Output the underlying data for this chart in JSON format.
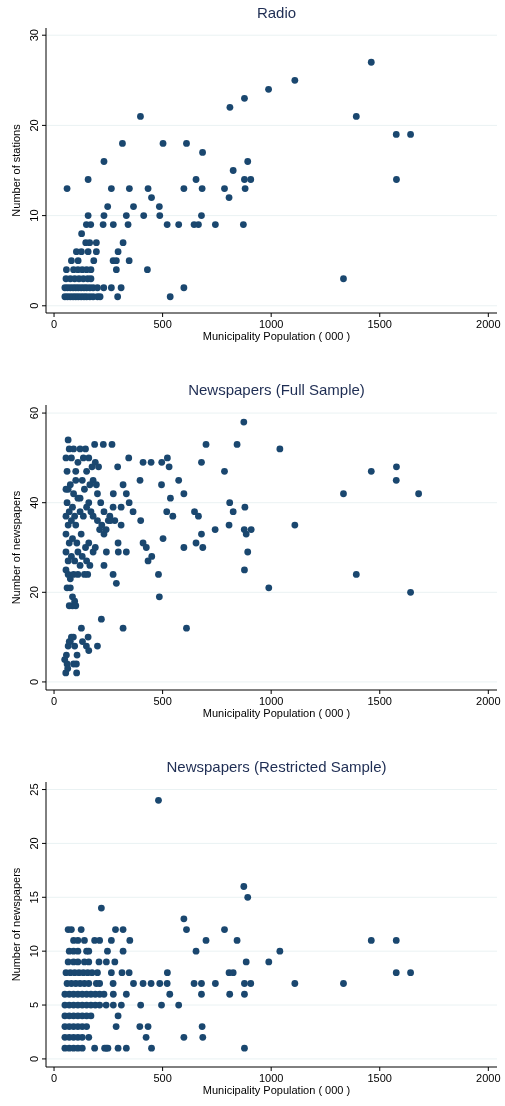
{
  "chart_data": [
    {
      "type": "scatter",
      "title": "Radio",
      "xlabel": "Municipality Population ( 000 )",
      "ylabel": "Number of stations",
      "color": "#1a476f",
      "marker": "circle",
      "grid": "y",
      "xlim": [
        -37,
        2040
      ],
      "ylim": [
        -0.8,
        30.8
      ],
      "xticks": [
        0,
        500,
        1000,
        1500,
        2000
      ],
      "yticks": [
        0,
        10,
        20,
        30
      ],
      "x": [
        60,
        157,
        230,
        315,
        398,
        502,
        610,
        684,
        810,
        877,
        988,
        1109,
        1461,
        1392,
        1576,
        1642,
        1577,
        1333,
        264,
        347,
        433,
        449,
        598,
        654,
        682,
        785,
        806,
        825,
        877,
        880,
        892,
        906,
        247,
        366,
        485,
        157,
        230,
        333,
        413,
        487,
        679,
        149,
        169,
        226,
        273,
        341,
        521,
        574,
        645,
        665,
        743,
        872,
        127,
        146,
        164,
        195,
        318,
        103,
        126,
        157,
        195,
        295,
        80,
        111,
        183,
        272,
        287,
        346,
        57,
        90,
        110,
        130,
        150,
        170,
        287,
        430,
        55,
        75,
        95,
        115,
        135,
        155,
        170,
        50,
        62,
        75,
        88,
        100,
        112,
        125,
        138,
        150,
        165,
        180,
        200,
        229,
        264,
        309,
        598,
        50,
        62,
        75,
        88,
        100,
        112,
        125,
        138,
        150,
        165,
        180,
        200,
        212,
        293,
        535
      ],
      "values": [
        13,
        14,
        16,
        18,
        21,
        18,
        18,
        17,
        22,
        23,
        24,
        25,
        27,
        21,
        19,
        19,
        14,
        3,
        13,
        13,
        13,
        12,
        13,
        14,
        13,
        13,
        12,
        15,
        14,
        13,
        16,
        14,
        11,
        11,
        11,
        10,
        10,
        10,
        10,
        10,
        10,
        9,
        9,
        9,
        9,
        9,
        9,
        9,
        9,
        9,
        9,
        9,
        8,
        7,
        7,
        7,
        7,
        6,
        6,
        6,
        6,
        6,
        5,
        5,
        5,
        5,
        5,
        5,
        4,
        4,
        4,
        4,
        4,
        4,
        4,
        4,
        3,
        3,
        3,
        3,
        3,
        3,
        3,
        2,
        2,
        2,
        2,
        2,
        2,
        2,
        2,
        2,
        2,
        2,
        2,
        2,
        2,
        2,
        2,
        1,
        1,
        1,
        1,
        1,
        1,
        1,
        1,
        1,
        1,
        1,
        1,
        1,
        1,
        1
      ]
    },
    {
      "type": "scatter",
      "title": "Newspapers (Full Sample)",
      "xlabel": "Municipality Population ( 000 )",
      "ylabel": "Number of newspapers",
      "color": "#1a476f",
      "marker": "circle",
      "grid": "y",
      "xlim": [
        -37,
        2040
      ],
      "ylim": [
        -1.8,
        61.8
      ],
      "xticks": [
        0,
        500,
        1000,
        1500,
        2000
      ],
      "yticks": [
        0,
        20,
        40,
        60
      ],
      "x": [
        65,
        874,
        1040,
        843,
        700,
        187,
        227,
        267,
        679,
        410,
        447,
        496,
        522,
        530,
        344,
        293,
        785,
        1461,
        1577,
        1576,
        1333,
        1679,
        1109,
        1392,
        1642,
        989,
        396,
        574,
        495,
        318,
        598,
        333,
        273,
        536,
        809,
        825,
        879,
        519,
        547,
        647,
        665,
        346,
        364,
        399,
        309,
        272,
        280,
        257,
        309,
        806,
        742,
        876,
        885,
        908,
        679,
        502,
        295,
        410,
        425,
        598,
        654,
        685,
        892,
        296,
        333,
        241,
        433,
        450,
        877,
        481,
        272,
        287,
        230,
        485,
        610,
        318,
        218,
        157,
        126,
        200,
        160,
        106,
        104,
        54,
        89,
        149,
        131,
        103,
        57,
        75,
        65,
        49,
        55,
        60,
        70,
        80,
        90,
        100,
        65,
        55,
        75,
        90,
        100,
        110,
        60,
        70,
        85,
        95,
        55,
        65,
        80,
        100,
        120,
        135,
        150,
        160,
        170,
        180,
        200,
        210,
        55,
        70,
        85,
        105,
        125,
        145,
        160,
        180,
        190,
        55,
        65,
        80,
        95,
        110,
        130,
        150,
        165,
        55,
        65,
        75,
        90,
        60,
        75,
        85,
        95,
        70,
        85,
        100,
        110,
        120,
        140,
        155,
        130,
        150,
        160,
        175,
        145,
        135,
        120,
        180,
        195,
        200,
        215,
        230,
        250,
        165,
        190,
        205,
        140,
        120,
        110,
        230,
        240,
        220,
        260,
        60,
        63,
        70,
        80,
        90,
        95
      ],
      "values": [
        54,
        58,
        52,
        53,
        53,
        53,
        53,
        53,
        49,
        49,
        49,
        49,
        50,
        48,
        50,
        48,
        47,
        47,
        48,
        45,
        42,
        42,
        35,
        24,
        20,
        21,
        45,
        45,
        44,
        44,
        42,
        42,
        42,
        41,
        40,
        38,
        39,
        38,
        37,
        38,
        37,
        40,
        38,
        36,
        39,
        39,
        36,
        37,
        35,
        35,
        34,
        34,
        33,
        34,
        33,
        32,
        31,
        31,
        30,
        30,
        31,
        30,
        29,
        29,
        29,
        29,
        27,
        28,
        25,
        24,
        24,
        22,
        26,
        19,
        12,
        12,
        14,
        10,
        12,
        8,
        7,
        6,
        2,
        2,
        10,
        8,
        9,
        4,
        6,
        9,
        8,
        5,
        50,
        47,
        52,
        50,
        52,
        47,
        43,
        43,
        44,
        42,
        45,
        41,
        40,
        38,
        39,
        37,
        37,
        35,
        36,
        35,
        38,
        37,
        39,
        40,
        38,
        37,
        36,
        34,
        33,
        31,
        32,
        31,
        33,
        30,
        31,
        29,
        30,
        29,
        27,
        28,
        27,
        29,
        28,
        27,
        26,
        25,
        24,
        23,
        24,
        21,
        21,
        19,
        18,
        17,
        17,
        17,
        24,
        26,
        24,
        24,
        45,
        47,
        50,
        48,
        52,
        50,
        52,
        45,
        44,
        42,
        40,
        38,
        36,
        44,
        49,
        48,
        43,
        41,
        49,
        33,
        34,
        35,
        36,
        4,
        3,
        9,
        10,
        4,
        8
      ]
    },
    {
      "type": "scatter",
      "title": "Newspapers (Restricted Sample)",
      "xlabel": "Municipality Population ( 000 )",
      "ylabel": "Number of newspapers",
      "color": "#1a476f",
      "marker": "circle",
      "grid": "y",
      "xlim": [
        -37,
        2040
      ],
      "ylim": [
        -0.75,
        25.7
      ],
      "xticks": [
        0,
        500,
        1000,
        1500,
        2000
      ],
      "yticks": [
        0,
        5,
        10,
        15,
        20,
        25
      ],
      "x": [
        481,
        218,
        874,
        892,
        598,
        610,
        785,
        65,
        80,
        125,
        283,
        318,
        700,
        843,
        1461,
        1576,
        90,
        110,
        140,
        187,
        210,
        264,
        349,
        654,
        1040,
        70,
        90,
        110,
        150,
        160,
        246,
        318,
        885,
        989,
        65,
        90,
        110,
        140,
        160,
        207,
        241,
        280,
        806,
        825,
        1576,
        1642,
        55,
        75,
        95,
        115,
        135,
        155,
        175,
        200,
        264,
        313,
        346,
        522,
        1109,
        1333,
        645,
        679,
        743,
        877,
        906,
        366,
        410,
        447,
        487,
        521,
        60,
        80,
        100,
        120,
        140,
        160,
        195,
        210,
        272,
        533,
        679,
        809,
        877,
        333,
        273,
        50,
        70,
        90,
        110,
        130,
        150,
        170,
        190,
        210,
        230,
        399,
        495,
        574,
        273,
        310,
        50,
        70,
        90,
        110,
        130,
        150,
        170,
        190,
        210,
        240,
        295,
        50,
        70,
        90,
        110,
        130,
        150,
        170,
        395,
        433,
        286,
        682,
        50,
        70,
        90,
        110,
        130,
        150,
        424,
        598,
        685,
        50,
        70,
        90,
        110,
        130,
        160,
        449,
        877,
        333,
        295,
        241,
        233,
        248,
        187,
        50,
        70,
        90,
        110,
        130
      ],
      "values": [
        24,
        14,
        16,
        15,
        13,
        12,
        12,
        12,
        12,
        12,
        12,
        12,
        11,
        11,
        11,
        11,
        11,
        11,
        11,
        11,
        11,
        11,
        11,
        10,
        10,
        10,
        10,
        10,
        10,
        10,
        10,
        10,
        9,
        9,
        9,
        9,
        9,
        9,
        9,
        9,
        9,
        9,
        8,
        8,
        8,
        8,
        8,
        8,
        8,
        8,
        8,
        8,
        8,
        8,
        8,
        8,
        8,
        8,
        7,
        7,
        7,
        7,
        7,
        7,
        7,
        7,
        7,
        7,
        7,
        7,
        7,
        7,
        7,
        7,
        7,
        7,
        7,
        7,
        7,
        6,
        6,
        6,
        6,
        6,
        6,
        6,
        6,
        6,
        6,
        6,
        6,
        6,
        6,
        6,
        6,
        5,
        5,
        5,
        5,
        5,
        5,
        5,
        5,
        5,
        5,
        5,
        5,
        5,
        5,
        5,
        4,
        4,
        4,
        4,
        4,
        4,
        4,
        4,
        3,
        3,
        3,
        3,
        3,
        3,
        3,
        3,
        3,
        3,
        2,
        2,
        2,
        2,
        2,
        2,
        2,
        2,
        2,
        1,
        1,
        1,
        1,
        1,
        1,
        1,
        1,
        1,
        1,
        1,
        1,
        1
      ]
    }
  ]
}
